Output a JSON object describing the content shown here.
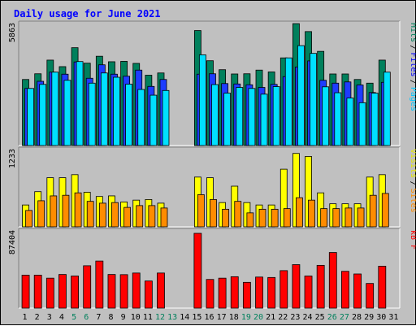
{
  "chart_data": {
    "type": "bar",
    "title": "Daily usage for June 2021",
    "x": [
      "1",
      "2",
      "3",
      "4",
      "5",
      "6",
      "7",
      "8",
      "9",
      "10",
      "11",
      "12",
      "13",
      "14",
      "15",
      "16",
      "17",
      "18",
      "19",
      "20",
      "21",
      "22",
      "23",
      "24",
      "25",
      "26",
      "27",
      "28",
      "29",
      "30",
      "31"
    ],
    "weekend_days": [
      "5",
      "6",
      "12",
      "13",
      "19",
      "20",
      "26",
      "27"
    ],
    "panels": [
      {
        "name": "hits-files-pages",
        "ymax_label": "5863",
        "ymax": 5863,
        "axis_labels": [
          {
            "text": "Hits",
            "color": "#00805c"
          },
          {
            "text": "Files",
            "color": "#0000ff"
          },
          {
            "text": "Pages",
            "color": "#00c8ff"
          }
        ],
        "series": [
          {
            "name": "Hits",
            "color": "#00805c",
            "values": [
              3240,
              3520,
              4190,
              3870,
              4800,
              4040,
              4380,
              4110,
              4130,
              4030,
              3450,
              3560,
              0,
              0,
              5640,
              4160,
              3720,
              3510,
              3520,
              3700,
              3610,
              4300,
              5980,
              5590,
              4620,
              3510,
              3510,
              3240,
              3060,
              4190,
              0
            ]
          },
          {
            "name": "Files",
            "color": "#1e3cff",
            "values": [
              2800,
              3150,
              3600,
              3500,
              4100,
              3300,
              3960,
              3500,
              3400,
              3700,
              2900,
              3240,
              0,
              0,
              3500,
              3520,
              3040,
              3020,
              2980,
              2850,
              3000,
              3380,
              3850,
              4150,
              3200,
              3060,
              3120,
              2970,
              2600,
              3100,
              0
            ]
          },
          {
            "name": "Pages",
            "color": "#00e0ff",
            "values": [
              2800,
              3000,
              3600,
              3200,
              4120,
              3060,
              3560,
              3350,
              3010,
              2750,
              2470,
              2700,
              0,
              0,
              4450,
              2990,
              2570,
              2850,
              2800,
              2520,
              2890,
              4300,
              4900,
              4520,
              2880,
              2590,
              2330,
              2100,
              2570,
              3600,
              0
            ]
          }
        ]
      },
      {
        "name": "visits-sites",
        "ymax_label": "1233",
        "ymax": 1233,
        "axis_labels": [
          {
            "text": "Visits",
            "color": "#e8e800"
          },
          {
            "text": "Sites",
            "color": "#ff8c00"
          }
        ],
        "series": [
          {
            "name": "Visits",
            "color": "#ffff00",
            "values": [
              360,
              580,
              810,
              810,
              860,
              570,
              500,
              510,
              410,
              440,
              450,
              390,
              0,
              0,
              820,
              810,
              400,
              670,
              400,
              360,
              360,
              950,
              1210,
              1160,
              560,
              380,
              380,
              380,
              820,
              860,
              0
            ]
          },
          {
            "name": "Sites",
            "color": "#ff8c00",
            "values": [
              270,
              430,
              510,
              520,
              560,
              420,
              390,
              400,
              320,
              350,
              350,
              310,
              0,
              0,
              530,
              450,
              290,
              420,
              230,
              290,
              290,
              300,
              480,
              440,
              300,
              300,
              310,
              310,
              520,
              550,
              0
            ]
          }
        ]
      },
      {
        "name": "kbytes",
        "ymax_label": "87404",
        "ymax": 87404,
        "axis_labels": [
          {
            "text": "kB F",
            "color": "#ff0000"
          }
        ],
        "series": [
          {
            "name": "kB F",
            "color": "#ff0000",
            "values": [
              38500,
              38500,
              35000,
              39300,
              37500,
              49500,
              55000,
              39300,
              39100,
              41000,
              31700,
              41000,
              0,
              0,
              87404,
              33500,
              35000,
              36700,
              30100,
              36300,
              35800,
              43800,
              50800,
              37500,
              50000,
              65000,
              43000,
              39900,
              28800,
              49000,
              0
            ]
          }
        ]
      }
    ]
  }
}
